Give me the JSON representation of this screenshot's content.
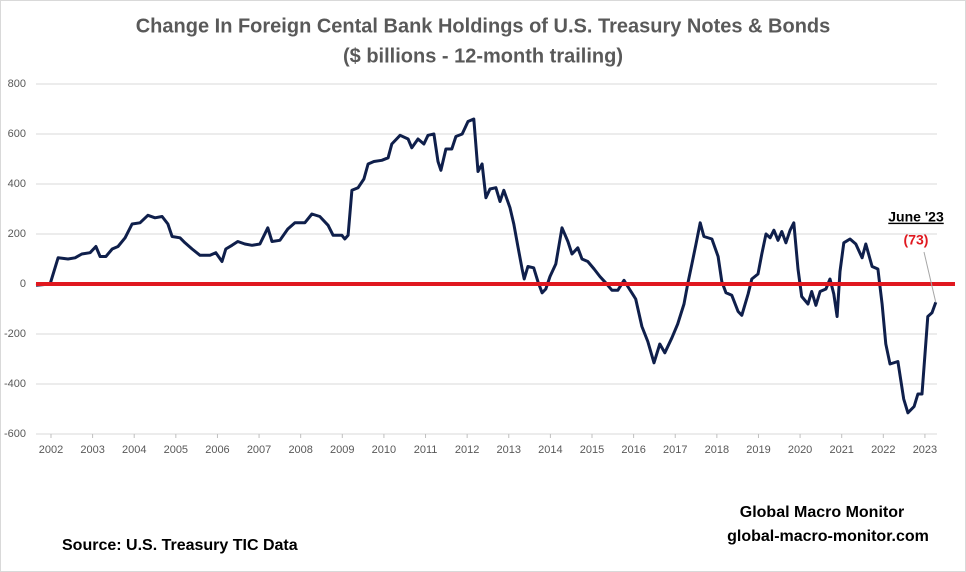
{
  "chart_data": {
    "type": "line",
    "title": "Change In Foreign Cental Bank Holdings of U.S. Treasury Notes & Bonds",
    "subtitle": "($ billions - 12-month trailing)",
    "source": "Source:  U.S. Treasury TIC Data",
    "credit": [
      "Global Macro Monitor",
      "global-macro-monitor.com"
    ],
    "annotations": [
      {
        "label": "June '23"
      },
      {
        "label": "(73)",
        "value": -73,
        "color": "#e0181f"
      }
    ],
    "reference_line": {
      "value": 0,
      "color": "#e0181f"
    },
    "grid": true,
    "xlim": [
      2001.64,
      2023.29
    ],
    "ylim": [
      -600,
      800
    ],
    "xticks": [
      2002,
      2003,
      2004,
      2005,
      2006,
      2007,
      2008,
      2009,
      2010,
      2011,
      2012,
      2013,
      2014,
      2015,
      2016,
      2017,
      2018,
      2019,
      2020,
      2021,
      2022,
      2023
    ],
    "yticks": [
      -600,
      -400,
      -200,
      0,
      200,
      400,
      600,
      800
    ],
    "series": [
      {
        "color": "#0f1f4b",
        "x": [
          2001.64,
          2001.98,
          2002.17,
          2002.41,
          2002.58,
          2002.74,
          2002.94,
          2003.08,
          2003.18,
          2003.32,
          2003.47,
          2003.61,
          2003.78,
          2003.95,
          2004.14,
          2004.33,
          2004.5,
          2004.67,
          2004.81,
          2004.91,
          2005.1,
          2005.22,
          2005.39,
          2005.58,
          2005.82,
          2005.96,
          2006.11,
          2006.2,
          2006.35,
          2006.49,
          2006.66,
          2006.83,
          2007.02,
          2007.21,
          2007.31,
          2007.5,
          2007.69,
          2007.86,
          2008.1,
          2008.27,
          2008.46,
          2008.66,
          2008.78,
          2008.99,
          2009.06,
          2009.14,
          2009.23,
          2009.38,
          2009.52,
          2009.62,
          2009.76,
          2009.95,
          2010.1,
          2010.19,
          2010.39,
          2010.58,
          2010.67,
          2010.82,
          2010.96,
          2011.06,
          2011.2,
          2011.3,
          2011.37,
          2011.49,
          2011.63,
          2011.73,
          2011.88,
          2012.02,
          2012.16,
          2012.26,
          2012.36,
          2012.45,
          2012.55,
          2012.69,
          2012.79,
          2012.88,
          2013.03,
          2013.12,
          2013.22,
          2013.32,
          2013.37,
          2013.46,
          2013.6,
          2013.7,
          2013.8,
          2013.89,
          2013.99,
          2014.13,
          2014.28,
          2014.42,
          2014.52,
          2014.66,
          2014.76,
          2014.9,
          2015.05,
          2015.19,
          2015.33,
          2015.48,
          2015.62,
          2015.77,
          2015.86,
          2016.05,
          2016.2,
          2016.34,
          2016.49,
          2016.63,
          2016.75,
          2016.92,
          2017.06,
          2017.21,
          2017.3,
          2017.4,
          2017.5,
          2017.6,
          2017.69,
          2017.88,
          2018.03,
          2018.12,
          2018.22,
          2018.36,
          2018.51,
          2018.6,
          2018.75,
          2018.84,
          2018.99,
          2019.08,
          2019.18,
          2019.28,
          2019.37,
          2019.47,
          2019.56,
          2019.66,
          2019.76,
          2019.85,
          2019.95,
          2020.04,
          2020.19,
          2020.28,
          2020.38,
          2020.48,
          2020.62,
          2020.72,
          2020.81,
          2020.89,
          2020.96,
          2021.05,
          2021.2,
          2021.34,
          2021.49,
          2021.58,
          2021.73,
          2021.87,
          2021.97,
          2022.06,
          2022.16,
          2022.35,
          2022.49,
          2022.59,
          2022.74,
          2022.83,
          2022.93,
          2023.07,
          2023.17,
          2023.26
        ],
        "values": [
          -5,
          0,
          105,
          100,
          105,
          120,
          125,
          150,
          110,
          110,
          140,
          150,
          185,
          240,
          245,
          275,
          265,
          270,
          240,
          190,
          185,
          165,
          140,
          115,
          115,
          125,
          90,
          140,
          155,
          170,
          160,
          155,
          160,
          225,
          170,
          175,
          220,
          245,
          245,
          280,
          270,
          235,
          195,
          195,
          180,
          195,
          375,
          385,
          420,
          480,
          490,
          495,
          505,
          560,
          595,
          580,
          545,
          580,
          560,
          595,
          600,
          490,
          455,
          540,
          540,
          590,
          600,
          650,
          660,
          450,
          480,
          345,
          380,
          385,
          330,
          375,
          305,
          240,
          150,
          60,
          20,
          70,
          65,
          10,
          -35,
          -20,
          30,
          80,
          225,
          170,
          120,
          145,
          100,
          90,
          60,
          30,
          5,
          -25,
          -25,
          15,
          -10,
          -60,
          -170,
          -230,
          -315,
          -240,
          -275,
          -215,
          -160,
          -80,
          0,
          80,
          160,
          245,
          190,
          180,
          110,
          10,
          -35,
          -45,
          -110,
          -125,
          -40,
          20,
          40,
          120,
          200,
          185,
          215,
          175,
          210,
          165,
          215,
          245,
          60,
          -50,
          -80,
          -30,
          -85,
          -30,
          -20,
          20,
          -40,
          -130,
          50,
          165,
          180,
          160,
          105,
          160,
          70,
          60,
          -80,
          -240,
          -320,
          -310,
          -460,
          -515,
          -490,
          -440,
          -440,
          -130,
          -115,
          -73
        ]
      }
    ]
  }
}
